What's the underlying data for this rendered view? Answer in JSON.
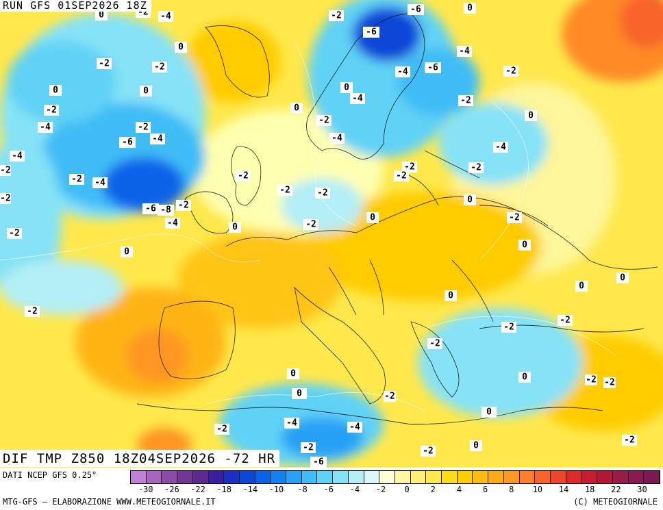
{
  "map": {
    "header": "RUN GFS 01SEP2026 18Z",
    "footer": "DIF TMP Z850 18Z04SEP2026 -72 HR",
    "contour_labels": [
      "0",
      "-2",
      "-4",
      "0",
      "-2",
      "-6",
      "0",
      "-2",
      "-2",
      "0",
      "-6",
      "-4",
      "-2",
      "-6",
      "-4",
      "-2",
      "0",
      "0",
      "-2",
      "0",
      "-4",
      "-2",
      "-4",
      "-6",
      "-4",
      "-2",
      "-2",
      "-4",
      "-4",
      "-4",
      "0",
      "-2",
      "-4",
      "-2",
      "-2",
      "-2",
      "-2",
      "-2",
      "-2",
      "-6",
      "-8",
      "-2",
      "-4",
      "-2",
      "0",
      "0",
      "-2",
      "-2",
      "-2",
      "0",
      "0",
      "0",
      "0",
      "-2",
      "0",
      "-2",
      "-2",
      "-2",
      "0",
      "0",
      "0",
      "-2",
      "-2",
      "0",
      "-2",
      "0",
      "-4",
      "-2",
      "-4",
      "-2",
      "-6",
      "-2",
      "0",
      "-2"
    ]
  },
  "legend": {
    "data_source": "DATI NCEP GFS 0.25°",
    "colors": [
      "#c080d8",
      "#a866c0",
      "#8c4ca8",
      "#703894",
      "#5a2a8c",
      "#3a1fa0",
      "#1c2fc0",
      "#0a46d8",
      "#0a64e8",
      "#1480f0",
      "#28a0f4",
      "#40bcf6",
      "#60d2f6",
      "#86e2f6",
      "#b4eef6",
      "#dcf6f8",
      "#ffffd8",
      "#fff6a6",
      "#fff07a",
      "#ffe84c",
      "#ffdc1c",
      "#ffcc00",
      "#ffbc10",
      "#ffaa18",
      "#ff9624",
      "#ff7e2c",
      "#f8642c",
      "#ee4628",
      "#dc2a2a",
      "#c81c30",
      "#b01838",
      "#981c48",
      "#8a1a50",
      "#7a1a54"
    ],
    "ticks": [
      "-30",
      "-26",
      "-22",
      "-18",
      "-14",
      "-10",
      "-8",
      "-6",
      "-4",
      "-2",
      "0",
      "2",
      "4",
      "6",
      "8",
      "10",
      "14",
      "18",
      "22",
      "30"
    ],
    "credit_left": "MTG-GFS — ELABORAZIONE WWW.METEOGIORNALE.IT",
    "credit_right": "(C) METEOGIORNALE"
  }
}
